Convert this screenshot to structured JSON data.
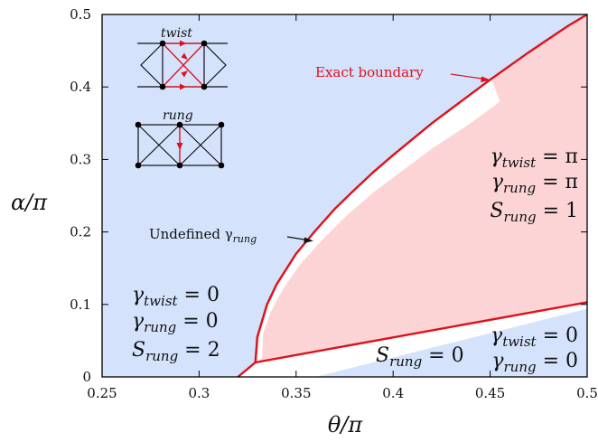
{
  "chart_data": {
    "type": "area",
    "xlabel": "θ/π",
    "ylabel": "α/π",
    "xlim": [
      0.25,
      0.5
    ],
    "ylim": [
      0,
      0.5
    ],
    "x_ticks": [
      "0.25",
      "0.3",
      "0.35",
      "0.4",
      "0.45",
      "0.5"
    ],
    "y_ticks": [
      "0",
      "0.1",
      "0.2",
      "0.3",
      "0.4",
      "0.5"
    ],
    "x_tick_values": [
      0.25,
      0.3,
      0.35,
      0.4,
      0.45,
      0.5
    ],
    "y_tick_values": [
      0,
      0.1,
      0.2,
      0.3,
      0.4,
      0.5
    ],
    "series": [
      {
        "name": "Exact boundary",
        "color": "#e0101a",
        "points": [
          [
            0.329,
            0.02
          ],
          [
            0.33,
            0.055
          ],
          [
            0.335,
            0.1
          ],
          [
            0.34,
            0.128
          ],
          [
            0.35,
            0.17
          ],
          [
            0.36,
            0.202
          ],
          [
            0.37,
            0.232
          ],
          [
            0.38,
            0.258
          ],
          [
            0.39,
            0.283
          ],
          [
            0.4,
            0.306
          ],
          [
            0.41,
            0.328
          ],
          [
            0.42,
            0.35
          ],
          [
            0.43,
            0.37
          ],
          [
            0.44,
            0.39
          ],
          [
            0.45,
            0.41
          ],
          [
            0.46,
            0.429
          ],
          [
            0.47,
            0.448
          ],
          [
            0.48,
            0.466
          ],
          [
            0.49,
            0.484
          ],
          [
            0.5,
            0.5
          ]
        ]
      },
      {
        "name": "",
        "color": "#e0101a",
        "points": [
          [
            0.32,
            0
          ],
          [
            0.329,
            0.02
          ],
          [
            0.5,
            0.103
          ]
        ]
      }
    ],
    "regions": [
      {
        "lines": [
          [
            "γ",
            "twist",
            " = 0"
          ],
          [
            "γ",
            "rung",
            " = 0"
          ],
          [
            "S",
            "rung",
            " = 2"
          ]
        ],
        "color": "#d4e2fc"
      },
      {
        "lines": [
          [
            "γ",
            "twist",
            " = π"
          ],
          [
            "γ",
            "rung",
            " = π"
          ],
          [
            "S",
            "rung",
            " = 1"
          ]
        ],
        "color": "#fcd4d6"
      },
      {
        "lines": [
          [
            "S",
            "rung",
            " = 0"
          ]
        ],
        "extra_lines": [
          [
            "γ",
            "twist",
            " = 0"
          ],
          [
            "γ",
            "rung",
            " = 0"
          ]
        ],
        "color": "#d4e2fc"
      }
    ],
    "annotations": {
      "exact_boundary": "Exact boundary",
      "undefined": [
        "Undefined γ",
        "rung"
      ]
    },
    "insets": {
      "twist_label": "twist",
      "rung_label": "rung"
    }
  }
}
